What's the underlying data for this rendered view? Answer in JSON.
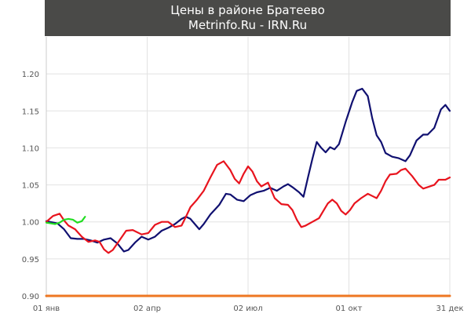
{
  "chart_data": {
    "type": "line",
    "title": "Цены в районе Братеево",
    "subtitle": "Metrinfo.Ru - IRN.Ru",
    "xlabel": "",
    "ylabel": "",
    "x_tick_labels": [
      "01 янв",
      "02 апр",
      "02 июл",
      "01 окт",
      "31 дек"
    ],
    "x_tick_days": [
      0,
      91,
      182,
      273,
      364
    ],
    "y_tick_labels": [
      "0.90",
      "0.95",
      "1.00",
      "1.05",
      "1.10",
      "1.15",
      "1.20"
    ],
    "y_ticks": [
      0.9,
      0.95,
      1.0,
      1.05,
      1.1,
      1.15,
      1.2
    ],
    "ylim": [
      0.9,
      1.25
    ],
    "xlim": [
      0,
      364
    ],
    "grid": true,
    "legend": "none",
    "series": [
      {
        "color": "#101070",
        "points": [
          [
            0,
            1.001
          ],
          [
            10,
            0.998
          ],
          [
            16,
            0.99
          ],
          [
            22,
            0.978
          ],
          [
            28,
            0.977
          ],
          [
            34,
            0.977
          ],
          [
            40,
            0.975
          ],
          [
            46,
            0.972
          ],
          [
            52,
            0.976
          ],
          [
            58,
            0.978
          ],
          [
            64,
            0.971
          ],
          [
            70,
            0.96
          ],
          [
            74,
            0.962
          ],
          [
            80,
            0.972
          ],
          [
            86,
            0.98
          ],
          [
            92,
            0.976
          ],
          [
            98,
            0.98
          ],
          [
            104,
            0.988
          ],
          [
            110,
            0.992
          ],
          [
            116,
            0.997
          ],
          [
            122,
            1.004
          ],
          [
            126,
            1.007
          ],
          [
            130,
            1.004
          ],
          [
            134,
            0.997
          ],
          [
            138,
            0.99
          ],
          [
            142,
            0.997
          ],
          [
            148,
            1.01
          ],
          [
            156,
            1.023
          ],
          [
            162,
            1.038
          ],
          [
            166,
            1.037
          ],
          [
            172,
            1.03
          ],
          [
            178,
            1.028
          ],
          [
            184,
            1.036
          ],
          [
            190,
            1.04
          ],
          [
            196,
            1.042
          ],
          [
            202,
            1.046
          ],
          [
            208,
            1.042
          ],
          [
            214,
            1.048
          ],
          [
            218,
            1.051
          ],
          [
            222,
            1.047
          ],
          [
            228,
            1.04
          ],
          [
            232,
            1.034
          ],
          [
            236,
            1.06
          ],
          [
            240,
            1.085
          ],
          [
            244,
            1.108
          ],
          [
            248,
            1.1
          ],
          [
            252,
            1.094
          ],
          [
            256,
            1.101
          ],
          [
            260,
            1.098
          ],
          [
            264,
            1.105
          ],
          [
            270,
            1.135
          ],
          [
            276,
            1.162
          ],
          [
            280,
            1.177
          ],
          [
            285,
            1.18
          ],
          [
            290,
            1.17
          ],
          [
            294,
            1.14
          ],
          [
            298,
            1.117
          ],
          [
            302,
            1.108
          ],
          [
            306,
            1.093
          ],
          [
            312,
            1.088
          ],
          [
            318,
            1.086
          ],
          [
            324,
            1.082
          ],
          [
            328,
            1.09
          ],
          [
            334,
            1.11
          ],
          [
            340,
            1.118
          ],
          [
            344,
            1.118
          ],
          [
            350,
            1.127
          ],
          [
            356,
            1.152
          ],
          [
            360,
            1.158
          ],
          [
            364,
            1.15
          ]
        ]
      },
      {
        "color": "#e8141e",
        "points": [
          [
            0,
            1.0
          ],
          [
            6,
            1.008
          ],
          [
            12,
            1.011
          ],
          [
            16,
            1.002
          ],
          [
            20,
            0.995
          ],
          [
            26,
            0.99
          ],
          [
            32,
            0.98
          ],
          [
            38,
            0.973
          ],
          [
            44,
            0.975
          ],
          [
            48,
            0.973
          ],
          [
            52,
            0.963
          ],
          [
            56,
            0.958
          ],
          [
            60,
            0.962
          ],
          [
            66,
            0.975
          ],
          [
            72,
            0.988
          ],
          [
            78,
            0.989
          ],
          [
            86,
            0.983
          ],
          [
            92,
            0.985
          ],
          [
            98,
            0.996
          ],
          [
            104,
            1.0
          ],
          [
            110,
            1.0
          ],
          [
            116,
            0.993
          ],
          [
            122,
            0.995
          ],
          [
            126,
            1.007
          ],
          [
            130,
            1.02
          ],
          [
            136,
            1.03
          ],
          [
            142,
            1.042
          ],
          [
            148,
            1.06
          ],
          [
            154,
            1.077
          ],
          [
            160,
            1.082
          ],
          [
            166,
            1.07
          ],
          [
            170,
            1.058
          ],
          [
            174,
            1.052
          ],
          [
            178,
            1.065
          ],
          [
            182,
            1.075
          ],
          [
            186,
            1.068
          ],
          [
            190,
            1.055
          ],
          [
            194,
            1.048
          ],
          [
            200,
            1.053
          ],
          [
            206,
            1.032
          ],
          [
            212,
            1.024
          ],
          [
            218,
            1.023
          ],
          [
            222,
            1.016
          ],
          [
            226,
            1.003
          ],
          [
            230,
            0.993
          ],
          [
            234,
            0.995
          ],
          [
            240,
            1.0
          ],
          [
            246,
            1.005
          ],
          [
            250,
            1.015
          ],
          [
            254,
            1.025
          ],
          [
            258,
            1.03
          ],
          [
            262,
            1.025
          ],
          [
            266,
            1.015
          ],
          [
            270,
            1.01
          ],
          [
            274,
            1.016
          ],
          [
            278,
            1.025
          ],
          [
            284,
            1.032
          ],
          [
            290,
            1.038
          ],
          [
            294,
            1.035
          ],
          [
            298,
            1.032
          ],
          [
            302,
            1.042
          ],
          [
            306,
            1.055
          ],
          [
            310,
            1.064
          ],
          [
            316,
            1.065
          ],
          [
            320,
            1.07
          ],
          [
            324,
            1.072
          ],
          [
            330,
            1.062
          ],
          [
            336,
            1.05
          ],
          [
            340,
            1.045
          ],
          [
            344,
            1.047
          ],
          [
            350,
            1.05
          ],
          [
            354,
            1.057
          ],
          [
            360,
            1.057
          ],
          [
            364,
            1.06
          ]
        ]
      },
      {
        "color": "#22dd22",
        "points": [
          [
            0,
            0.999
          ],
          [
            4,
            0.998
          ],
          [
            8,
            0.997
          ],
          [
            12,
            0.999
          ],
          [
            16,
            1.003
          ],
          [
            20,
            1.004
          ],
          [
            24,
            1.003
          ],
          [
            28,
            0.999
          ],
          [
            32,
            1.001
          ],
          [
            35,
            1.007
          ]
        ]
      },
      {
        "color": "#ee7722",
        "points": [
          [
            0,
            0.9
          ],
          [
            364,
            0.9
          ]
        ]
      }
    ]
  }
}
